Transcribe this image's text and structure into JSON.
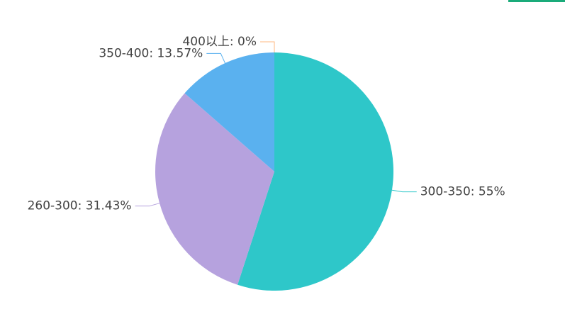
{
  "chart_data": {
    "type": "pie",
    "labels": [
      "300-350: 55%",
      "260-300: 31.43%",
      "350-400: 13.57%",
      "400以上: 0%"
    ],
    "values": [
      55,
      31.43,
      13.57,
      0
    ],
    "colors": [
      "#2ec7c9",
      "#b6a2de",
      "#5ab1ef",
      "#ffb980"
    ]
  }
}
